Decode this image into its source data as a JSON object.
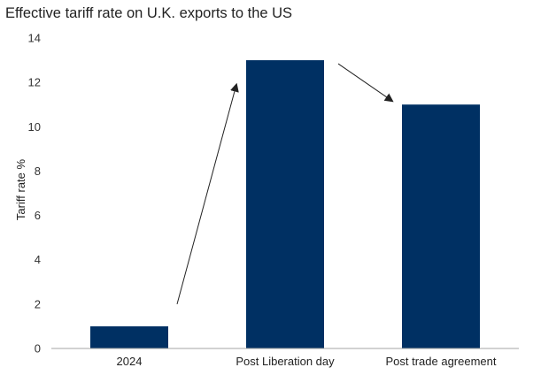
{
  "chart_data": {
    "type": "bar",
    "title": "Effective tariff rate on U.K. exports to the US",
    "xlabel": "",
    "ylabel": "Tariff rate %",
    "categories": [
      "2024",
      "Post Liberation day",
      "Post trade agreement"
    ],
    "values": [
      1,
      13,
      11
    ],
    "ylim": [
      0,
      14
    ],
    "yticks": [
      0,
      2,
      4,
      6,
      8,
      10,
      12,
      14
    ],
    "grid": false,
    "legend": "none",
    "annotations": [
      {
        "type": "arrow",
        "from_category": "2024",
        "to_category": "Post Liberation day"
      },
      {
        "type": "arrow",
        "from_category": "Post Liberation day",
        "to_category": "Post trade agreement"
      }
    ]
  },
  "colors": {
    "bar": "#003063",
    "axis": "#a6a6a6",
    "arrow": "#222222"
  }
}
